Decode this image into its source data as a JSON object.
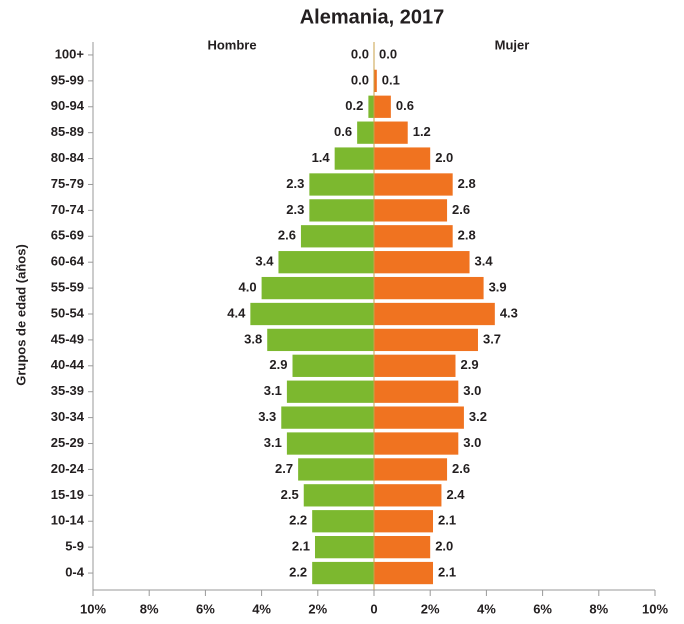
{
  "chart_data": {
    "type": "pyramid",
    "title": "Alemania, 2017",
    "y_label": "Grupos de edad (años)",
    "categories": [
      "100+",
      "95-99",
      "90-94",
      "85-89",
      "80-84",
      "75-79",
      "70-74",
      "65-69",
      "60-64",
      "55-59",
      "50-54",
      "45-49",
      "40-44",
      "35-39",
      "30-34",
      "25-29",
      "20-24",
      "15-19",
      "10-14",
      "5-9",
      "0-4"
    ],
    "series": [
      {
        "name": "Hombre",
        "color": "#7cb82f",
        "values": [
          0,
          0,
          0.2,
          0.6,
          1.4,
          2.3,
          2.3,
          2.6,
          3.4,
          4,
          4.4,
          3.8,
          2.9,
          3.1,
          3.3,
          3.1,
          2.7,
          2.5,
          2.2,
          2.1,
          2.2
        ],
        "value_labels": [
          "0.0",
          "0.0",
          "0.2",
          "0.6",
          "1.4",
          "2.3",
          "2.3",
          "2.6",
          "3.4",
          "4.0",
          "4.4",
          "3.8",
          "2.9",
          "3.1",
          "3.3",
          "3.1",
          "2.7",
          "2.5",
          "2.2",
          "2.1",
          "2.2"
        ]
      },
      {
        "name": "Mujer",
        "color": "#f07320",
        "values": [
          0,
          0.1,
          0.6,
          1.2,
          2,
          2.8,
          2.6,
          2.8,
          3.4,
          3.9,
          4.3,
          3.7,
          2.9,
          3,
          3.2,
          3,
          2.6,
          2.4,
          2.1,
          2,
          2.1
        ],
        "value_labels": [
          "0.0",
          "0.1",
          "0.6",
          "1.2",
          "2.0",
          "2.8",
          "2.6",
          "2.8",
          "3.4",
          "3.9",
          "4.3",
          "3.7",
          "2.9",
          "3.0",
          "3.2",
          "3.0",
          "2.6",
          "2.4",
          "2.1",
          "2.0",
          "2.1"
        ]
      }
    ],
    "xlim": [
      -10,
      10
    ],
    "xticks": [
      {
        "value": -10,
        "label": "10%"
      },
      {
        "value": -8,
        "label": "8%"
      },
      {
        "value": -6,
        "label": "6%"
      },
      {
        "value": -4,
        "label": "4%"
      },
      {
        "value": -2,
        "label": "2%"
      },
      0,
      {
        "value": 2,
        "label": "2%"
      },
      {
        "value": 4,
        "label": "4%"
      },
      {
        "value": 6,
        "label": "6%"
      },
      {
        "value": 8,
        "label": "8%"
      },
      {
        "value": 10,
        "label": "10%"
      }
    ]
  }
}
